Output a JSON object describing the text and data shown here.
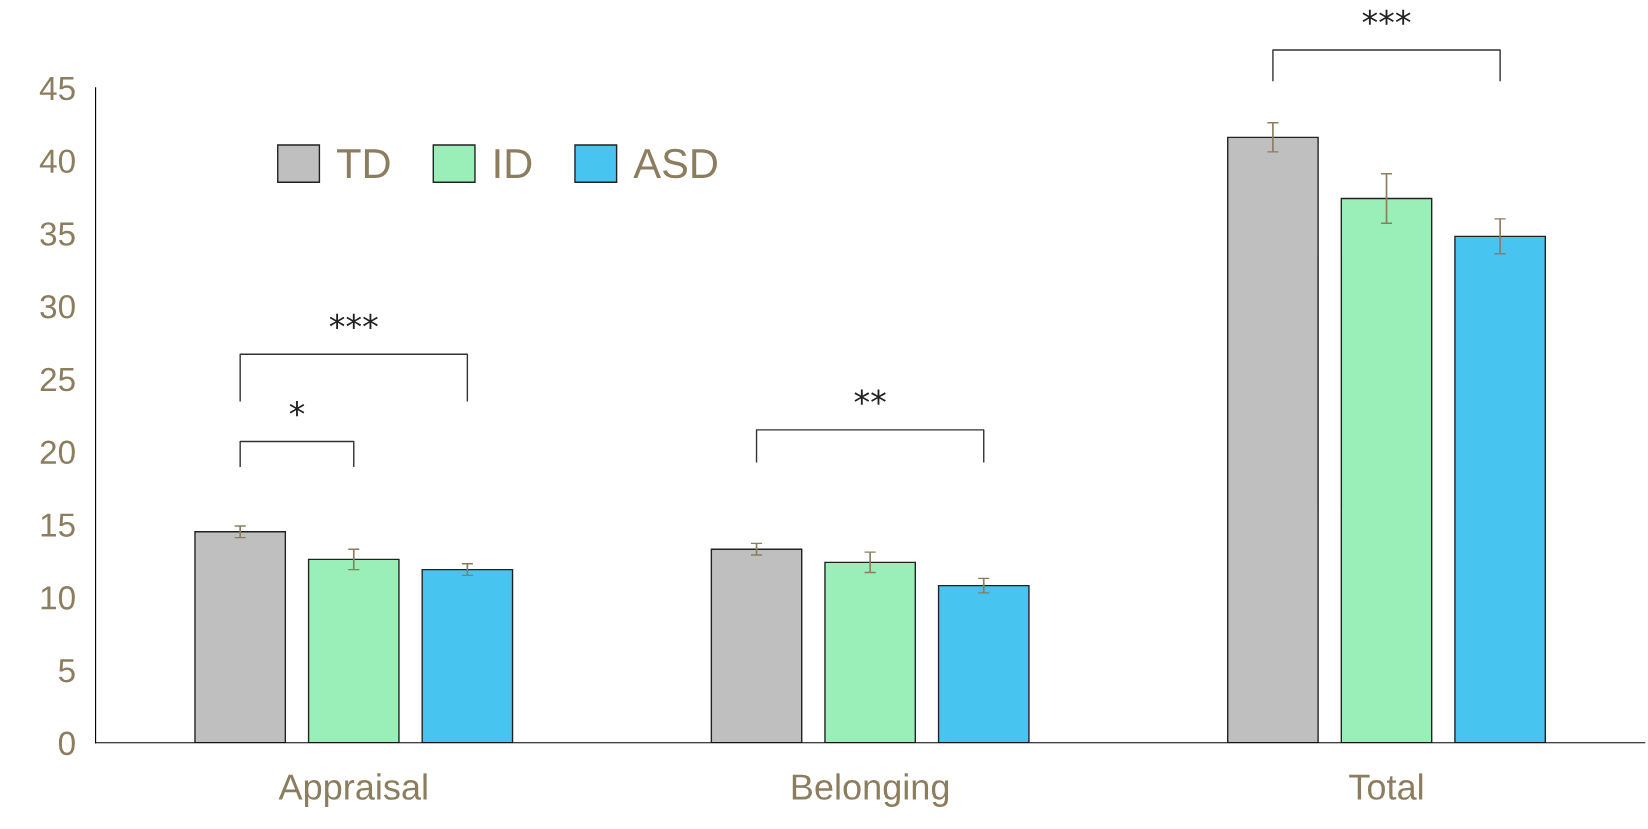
{
  "chart_data": {
    "type": "bar",
    "categories": [
      "Appraisal",
      "Belonging",
      "Total"
    ],
    "series": [
      {
        "name": "TD",
        "color": "#bfbfbf",
        "values": [
          14.5,
          13.3,
          41.6
        ],
        "errors": [
          0.4,
          0.4,
          1.0
        ]
      },
      {
        "name": "ID",
        "color": "#9aeeb8",
        "values": [
          12.6,
          12.4,
          37.4
        ],
        "errors": [
          0.7,
          0.7,
          1.7
        ]
      },
      {
        "name": "ASD",
        "color": "#47c4f0",
        "values": [
          11.9,
          10.8,
          34.8
        ],
        "errors": [
          0.4,
          0.5,
          1.2
        ]
      }
    ],
    "ylim": [
      0,
      45
    ],
    "yticks": [
      0,
      5,
      10,
      15,
      20,
      25,
      30,
      35,
      40,
      45
    ],
    "annotations": [
      "*",
      "***",
      "**",
      "***"
    ],
    "legend": "top",
    "grid": false
  }
}
